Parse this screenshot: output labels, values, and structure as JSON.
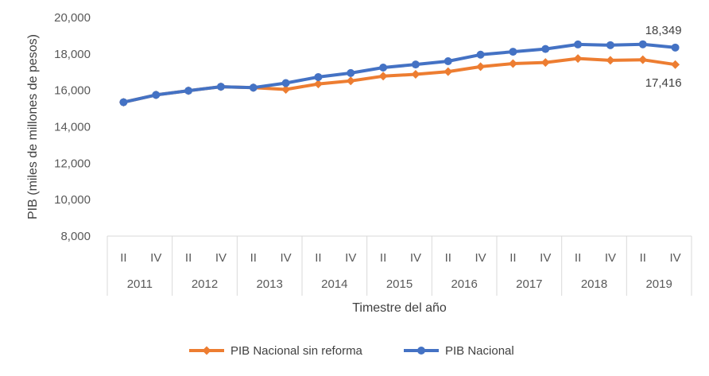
{
  "chart_data": {
    "type": "line",
    "title": "",
    "xlabel": "Timestre del año",
    "ylabel": "PIB (miles de millones de pesos)",
    "ylim": [
      8000,
      20000
    ],
    "yticks": [
      "8,000",
      "10,000",
      "12,000",
      "14,000",
      "16,000",
      "18,000",
      "20,000"
    ],
    "years": [
      "2011",
      "2012",
      "2013",
      "2014",
      "2015",
      "2016",
      "2017",
      "2018",
      "2019"
    ],
    "quarters": [
      "II",
      "IV"
    ],
    "x": [
      "2011-II",
      "2011-IV",
      "2012-II",
      "2012-IV",
      "2013-II",
      "2013-IV",
      "2014-II",
      "2014-IV",
      "2015-II",
      "2015-IV",
      "2016-II",
      "2016-IV",
      "2017-II",
      "2017-IV",
      "2018-II",
      "2018-IV",
      "2019-II",
      "2019-IV"
    ],
    "series": [
      {
        "name": "PIB Nacional sin reforma",
        "color": "#ED7D31",
        "marker": "diamond",
        "values": [
          15350,
          15750,
          15980,
          16200,
          16150,
          16050,
          16350,
          16520,
          16780,
          16880,
          17030,
          17300,
          17470,
          17530,
          17750,
          17650,
          17680,
          17416
        ],
        "end_label": "17,416"
      },
      {
        "name": "PIB Nacional",
        "color": "#4472C4",
        "marker": "circle",
        "values": [
          15350,
          15750,
          15980,
          16200,
          16150,
          16400,
          16730,
          16950,
          17250,
          17420,
          17600,
          17960,
          18120,
          18270,
          18520,
          18480,
          18530,
          18349
        ],
        "end_label": "18,349"
      }
    ],
    "grid": false,
    "legend_position": "bottom"
  }
}
